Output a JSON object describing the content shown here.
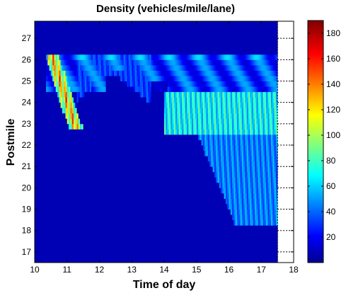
{
  "chart_data": {
    "type": "heatmap",
    "title": "Density (vehicles/mile/lane)",
    "xlabel": "Time of day",
    "ylabel": "Postmile",
    "xlim": [
      10,
      18
    ],
    "ylim": [
      16.5,
      27.8
    ],
    "data_time_range": [
      10,
      17.5
    ],
    "x_ticks": [
      10,
      11,
      12,
      13,
      14,
      15,
      16,
      17,
      18
    ],
    "y_ticks": [
      17,
      18,
      19,
      20,
      21,
      22,
      23,
      24,
      25,
      26,
      27
    ],
    "grid": "dotted-right-edge",
    "colormap": "jet",
    "color_range": [
      0,
      190
    ],
    "colorbar": {
      "ticks": [
        20,
        40,
        60,
        80,
        100,
        120,
        140,
        160,
        180
      ],
      "placement": "right"
    },
    "regions": [
      {
        "name": "background",
        "density": 10
      },
      {
        "name": "wide-congestion-band",
        "postmile": [
          24.5,
          26.2
        ],
        "time": [
          10.5,
          17.5
        ],
        "density": 55
      },
      {
        "name": "queue-spillback-east",
        "postmile": [
          22.5,
          24.5
        ],
        "time": [
          14.0,
          17.5
        ],
        "density": 90
      },
      {
        "name": "queue-tail-south",
        "postmile": [
          18.2,
          22.5
        ],
        "time": [
          15.0,
          17.5
        ],
        "density": 60
      },
      {
        "name": "morning-hotspot-west",
        "postmile": [
          22.8,
          26.2
        ],
        "time": [
          10.5,
          11.5
        ],
        "density": 170
      },
      {
        "name": "midday-shockwave",
        "postmile": [
          24.0,
          26.0
        ],
        "time": [
          11.5,
          13.0
        ],
        "density": 45
      }
    ]
  }
}
